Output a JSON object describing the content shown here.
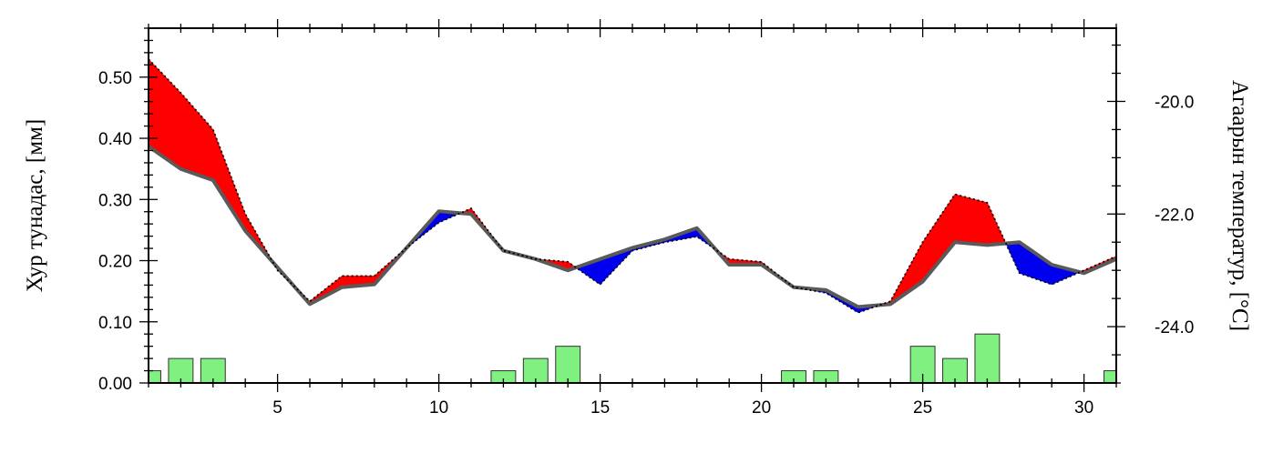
{
  "chart_data": {
    "type": "line",
    "x": [
      1,
      2,
      3,
      4,
      5,
      6,
      7,
      8,
      9,
      10,
      11,
      12,
      13,
      14,
      15,
      16,
      17,
      18,
      19,
      20,
      21,
      22,
      23,
      24,
      25,
      26,
      27,
      28,
      29,
      30,
      31
    ],
    "xlim": [
      1,
      31
    ],
    "x_ticks": [
      5,
      10,
      15,
      20,
      25,
      30
    ],
    "x_tick_labels": [
      "5",
      "10",
      "15",
      "20",
      "25",
      "30"
    ],
    "ylabel": "Хур тунадас, [мм]",
    "ylim": [
      0.0,
      0.58
    ],
    "y_ticks": [
      0.0,
      0.1,
      0.2,
      0.3,
      0.4,
      0.5
    ],
    "y_tick_labels": [
      "0.00",
      "0.10",
      "0.20",
      "0.30",
      "0.40",
      "0.50"
    ],
    "y2label": "Агаарын температур, [°C]",
    "y2lim": [
      -25.0,
      -18.7
    ],
    "y2_ticks": [
      -24.0,
      -22.0,
      -20.0
    ],
    "y2_tick_labels": [
      "-24.0",
      "-22.0",
      "-20.0"
    ],
    "grid": false,
    "series": [
      {
        "role": "temperature",
        "axis": "right",
        "style": "dotted",
        "values": [
          -19.25,
          -19.85,
          -20.5,
          -22.0,
          -23.0,
          -23.55,
          -23.1,
          -23.1,
          -22.6,
          -22.15,
          -21.9,
          -22.65,
          -22.8,
          -22.85,
          -23.25,
          -22.65,
          -22.5,
          -22.4,
          -22.8,
          -22.85,
          -23.3,
          -23.4,
          -23.75,
          -23.55,
          -22.5,
          -21.65,
          -21.8,
          -23.05,
          -23.25,
          -23.0,
          -22.75
        ]
      },
      {
        "role": "climatology",
        "axis": "right",
        "style": "solid",
        "values": [
          -20.8,
          -21.2,
          -21.4,
          -22.3,
          -22.95,
          -23.6,
          -23.3,
          -23.25,
          -22.6,
          -21.95,
          -22.0,
          -22.65,
          -22.8,
          -23.0,
          -22.8,
          -22.6,
          -22.45,
          -22.25,
          -22.9,
          -22.9,
          -23.3,
          -23.35,
          -23.65,
          -23.6,
          -23.2,
          -22.5,
          -22.55,
          -22.5,
          -22.9,
          -23.05,
          -22.8
        ]
      },
      {
        "role": "precipitation",
        "axis": "left",
        "type": "bar",
        "values": [
          0.02,
          0.04,
          0.04,
          0.0,
          0.0,
          0.0,
          0.0,
          0.0,
          0.0,
          0.0,
          0.0,
          0.02,
          0.04,
          0.06,
          0.0,
          0.0,
          0.0,
          0.0,
          0.0,
          0.0,
          0.02,
          0.02,
          0.0,
          0.0,
          0.06,
          0.04,
          0.08,
          0.0,
          0.0,
          0.0,
          0.02
        ]
      }
    ],
    "colors": {
      "warm_fill": "#ff0000",
      "cold_fill": "#0000ee",
      "bar_fill": "#80f080",
      "climatology_line": "#5a5a5a",
      "temperature_line": "#000000"
    }
  }
}
